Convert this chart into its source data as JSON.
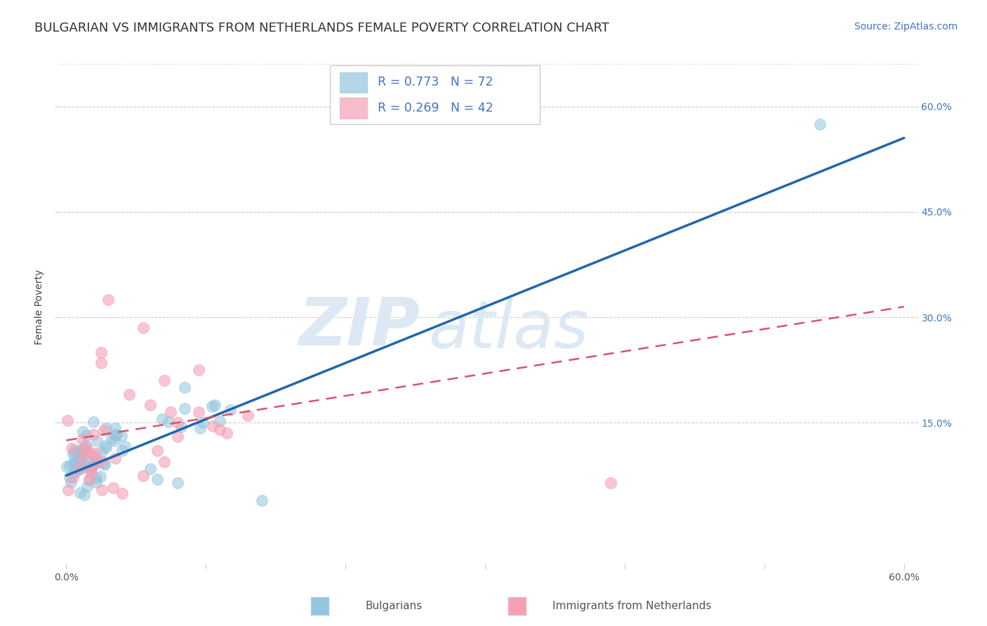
{
  "title": "BULGARIAN VS IMMIGRANTS FROM NETHERLANDS FEMALE POVERTY CORRELATION CHART",
  "source": "Source: ZipAtlas.com",
  "xlabel_bulgarians": "Bulgarians",
  "xlabel_immigrants": "Immigrants from Netherlands",
  "ylabel": "Female Poverty",
  "legend_r1": "R = 0.773",
  "legend_n1": "N = 72",
  "legend_r2": "R = 0.269",
  "legend_n2": "N = 42",
  "color_blue": "#92c5de",
  "color_pink": "#f4a0b5",
  "line_blue": "#2166ac",
  "line_pink": "#d6546e",
  "bg_color": "#ffffff",
  "grid_color": "#cccccc",
  "xmin": 0.0,
  "xmax": 0.6,
  "ymin": -0.05,
  "ymax": 0.68,
  "right_yticks": [
    0.15,
    0.3,
    0.45,
    0.6
  ],
  "right_yticklabels": [
    "15.0%",
    "30.0%",
    "45.0%",
    "60.0%"
  ],
  "xticks": [
    0.0,
    0.1,
    0.2,
    0.3,
    0.4,
    0.5,
    0.6
  ],
  "xticklabels": [
    "0.0%",
    "",
    "",
    "",
    "",
    "",
    "60.0%"
  ],
  "watermark_zip": "ZIP",
  "watermark_atlas": "atlas",
  "watermark_color": "#dce9f5",
  "title_fontsize": 13,
  "axis_label_fontsize": 10,
  "tick_fontsize": 10,
  "legend_fontsize": 12,
  "source_fontsize": 10,
  "blue_line_x0": 0.0,
  "blue_line_y0": 0.075,
  "blue_line_x1": 0.6,
  "blue_line_y1": 0.555,
  "pink_line_x0": 0.0,
  "pink_line_y0": 0.125,
  "pink_line_x1": 0.6,
  "pink_line_y1": 0.315
}
